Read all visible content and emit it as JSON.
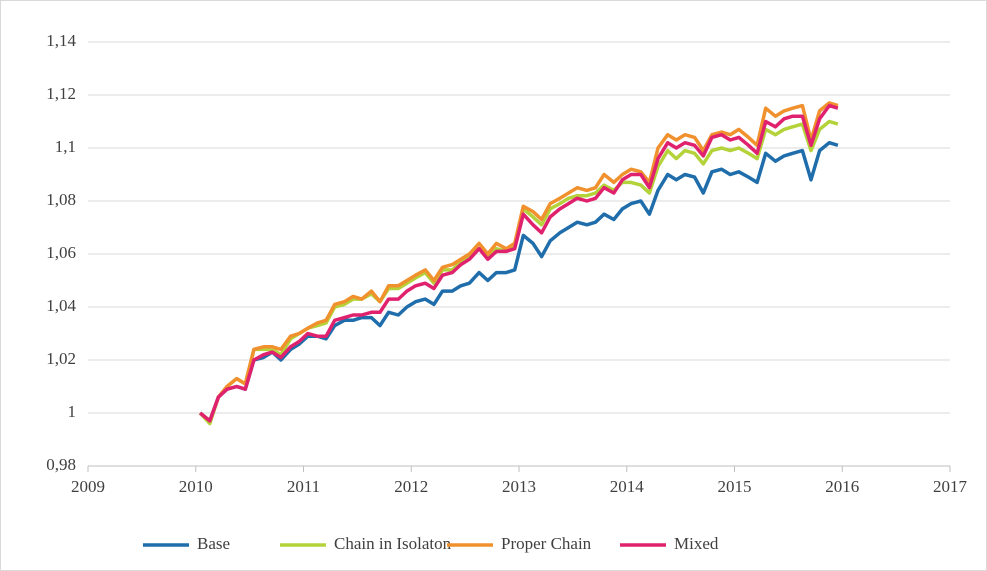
{
  "chart_data": {
    "type": "line",
    "x": [
      2010.04,
      2010.13,
      2010.21,
      2010.29,
      2010.38,
      2010.46,
      2010.54,
      2010.63,
      2010.71,
      2010.79,
      2010.88,
      2010.96,
      2011.04,
      2011.13,
      2011.21,
      2011.29,
      2011.38,
      2011.46,
      2011.54,
      2011.63,
      2011.71,
      2011.79,
      2011.88,
      2011.96,
      2012.04,
      2012.13,
      2012.21,
      2012.29,
      2012.38,
      2012.46,
      2012.54,
      2012.63,
      2012.71,
      2012.79,
      2012.88,
      2012.96,
      2013.04,
      2013.13,
      2013.21,
      2013.29,
      2013.38,
      2013.46,
      2013.54,
      2013.63,
      2013.71,
      2013.79,
      2013.88,
      2013.96,
      2014.04,
      2014.13,
      2014.21,
      2014.29,
      2014.38,
      2014.46,
      2014.54,
      2014.63,
      2014.71,
      2014.79,
      2014.88,
      2014.96,
      2015.04,
      2015.13,
      2015.21,
      2015.29,
      2015.38,
      2015.46,
      2015.54,
      2015.63,
      2015.71,
      2015.79,
      2015.88,
      2015.96
    ],
    "series": [
      {
        "name": "Base",
        "color": "#1f6eab",
        "values": [
          1.0,
          0.997,
          1.006,
          1.009,
          1.01,
          1.009,
          1.02,
          1.021,
          1.023,
          1.02,
          1.024,
          1.026,
          1.029,
          1.029,
          1.028,
          1.033,
          1.035,
          1.035,
          1.036,
          1.036,
          1.033,
          1.038,
          1.037,
          1.04,
          1.042,
          1.043,
          1.041,
          1.046,
          1.046,
          1.048,
          1.049,
          1.053,
          1.05,
          1.053,
          1.053,
          1.054,
          1.067,
          1.064,
          1.059,
          1.065,
          1.068,
          1.07,
          1.072,
          1.071,
          1.072,
          1.075,
          1.073,
          1.077,
          1.079,
          1.08,
          1.075,
          1.084,
          1.09,
          1.088,
          1.09,
          1.089,
          1.083,
          1.091,
          1.092,
          1.09,
          1.091,
          1.089,
          1.087,
          1.098,
          1.095,
          1.097,
          1.098,
          1.099,
          1.088,
          1.099,
          1.102,
          1.101
        ]
      },
      {
        "name": "Chain in Isolaton",
        "color": "#b4d33a",
        "values": [
          1.0,
          0.996,
          1.006,
          1.01,
          1.013,
          1.011,
          1.024,
          1.024,
          1.024,
          1.022,
          1.028,
          1.03,
          1.032,
          1.033,
          1.034,
          1.04,
          1.041,
          1.043,
          1.043,
          1.045,
          1.042,
          1.047,
          1.047,
          1.049,
          1.051,
          1.053,
          1.049,
          1.054,
          1.054,
          1.057,
          1.059,
          1.062,
          1.059,
          1.062,
          1.061,
          1.063,
          1.077,
          1.074,
          1.071,
          1.077,
          1.079,
          1.081,
          1.082,
          1.082,
          1.083,
          1.086,
          1.084,
          1.087,
          1.087,
          1.086,
          1.083,
          1.093,
          1.099,
          1.096,
          1.099,
          1.098,
          1.094,
          1.099,
          1.1,
          1.099,
          1.1,
          1.098,
          1.096,
          1.107,
          1.105,
          1.107,
          1.108,
          1.109,
          1.099,
          1.107,
          1.11,
          1.109
        ]
      },
      {
        "name": "Proper Chain",
        "color": "#f0912e",
        "values": [
          1.0,
          0.997,
          1.006,
          1.01,
          1.013,
          1.011,
          1.024,
          1.025,
          1.025,
          1.024,
          1.029,
          1.03,
          1.032,
          1.034,
          1.035,
          1.041,
          1.042,
          1.044,
          1.043,
          1.046,
          1.042,
          1.048,
          1.048,
          1.05,
          1.052,
          1.054,
          1.05,
          1.055,
          1.056,
          1.058,
          1.06,
          1.064,
          1.06,
          1.064,
          1.062,
          1.064,
          1.078,
          1.076,
          1.073,
          1.079,
          1.081,
          1.083,
          1.085,
          1.084,
          1.085,
          1.09,
          1.087,
          1.09,
          1.092,
          1.091,
          1.087,
          1.1,
          1.105,
          1.103,
          1.105,
          1.104,
          1.099,
          1.105,
          1.106,
          1.105,
          1.107,
          1.104,
          1.101,
          1.115,
          1.112,
          1.114,
          1.115,
          1.116,
          1.103,
          1.114,
          1.117,
          1.116
        ]
      },
      {
        "name": "Mixed",
        "color": "#e0226e",
        "values": [
          1.0,
          0.997,
          1.006,
          1.009,
          1.01,
          1.009,
          1.02,
          1.022,
          1.023,
          1.021,
          1.025,
          1.027,
          1.03,
          1.029,
          1.029,
          1.035,
          1.036,
          1.037,
          1.037,
          1.038,
          1.038,
          1.043,
          1.043,
          1.046,
          1.048,
          1.049,
          1.047,
          1.052,
          1.053,
          1.056,
          1.058,
          1.062,
          1.058,
          1.061,
          1.061,
          1.062,
          1.075,
          1.071,
          1.068,
          1.074,
          1.077,
          1.079,
          1.081,
          1.08,
          1.081,
          1.085,
          1.083,
          1.088,
          1.09,
          1.09,
          1.085,
          1.096,
          1.102,
          1.1,
          1.102,
          1.101,
          1.097,
          1.104,
          1.105,
          1.103,
          1.104,
          1.101,
          1.098,
          1.11,
          1.108,
          1.111,
          1.112,
          1.112,
          1.101,
          1.111,
          1.116,
          1.115
        ]
      }
    ],
    "xlim": [
      2009,
      2017
    ],
    "xticks": [
      2009,
      2010,
      2011,
      2012,
      2013,
      2014,
      2015,
      2016,
      2017
    ],
    "ylim": [
      0.98,
      1.14
    ],
    "yticks": [
      {
        "value": 0.98,
        "label": "0,98"
      },
      1,
      {
        "value": 1.02,
        "label": "1,02"
      },
      {
        "value": 1.04,
        "label": "1,04"
      },
      {
        "value": 1.06,
        "label": "1,06"
      },
      {
        "value": 1.08,
        "label": "1,08"
      },
      {
        "value": 1.1,
        "label": "1,1"
      },
      {
        "value": 1.12,
        "label": "1,12"
      },
      {
        "value": 1.14,
        "label": "1,14"
      }
    ],
    "grid": true,
    "legend": "bottom"
  }
}
